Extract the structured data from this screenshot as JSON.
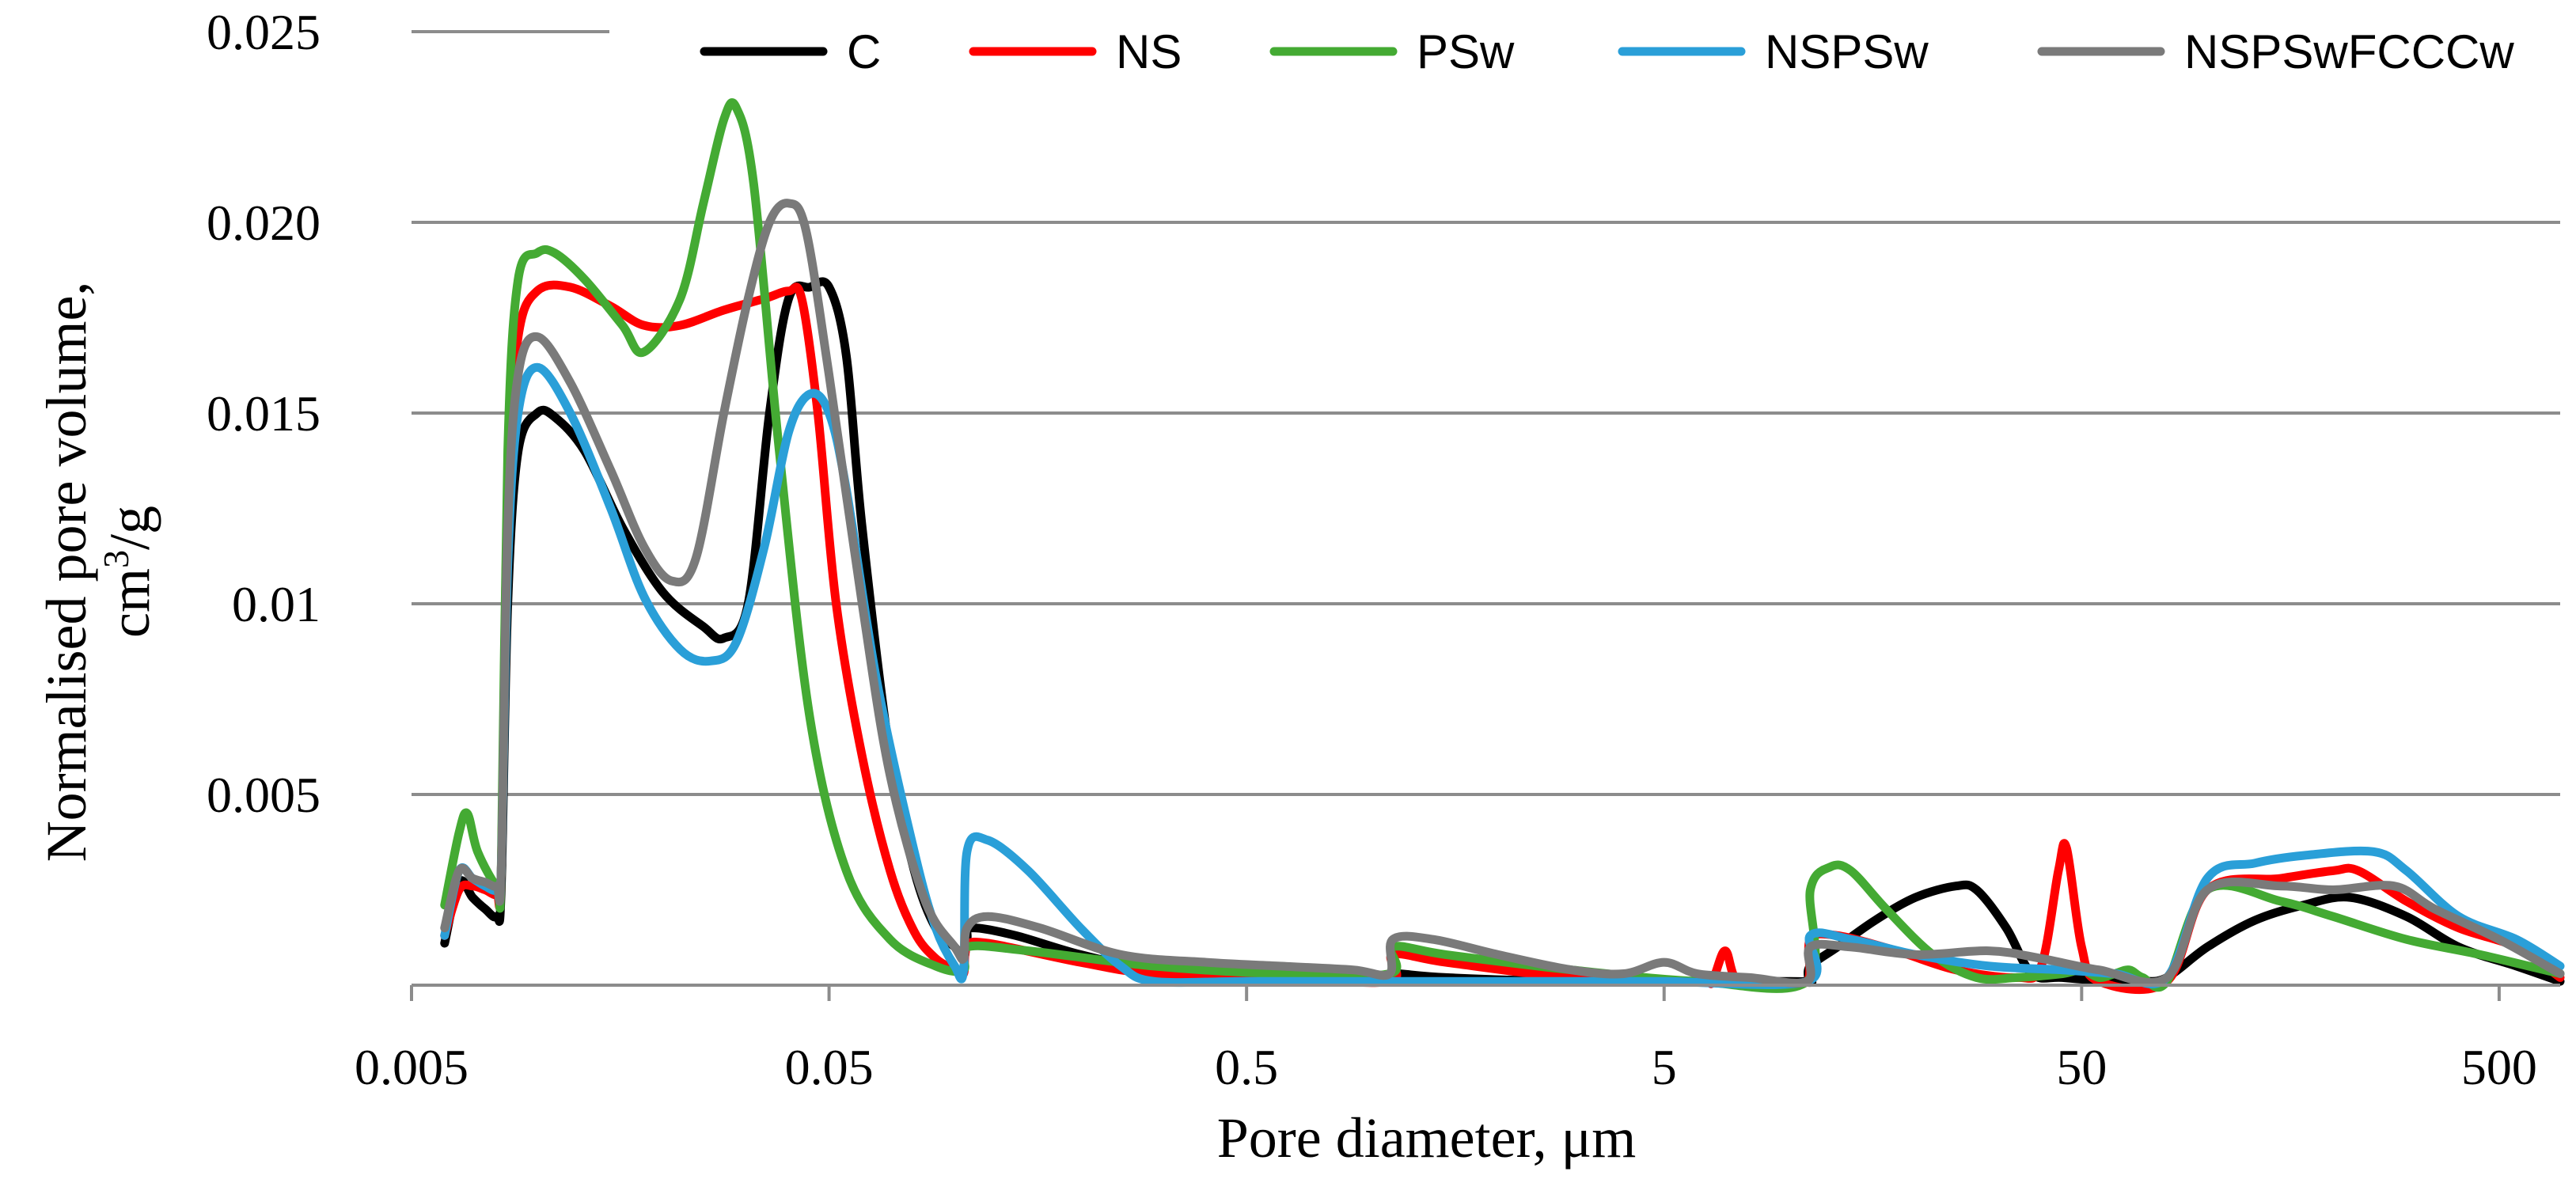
{
  "chart_data": {
    "type": "line",
    "xlabel": "Pore diameter, μm",
    "ylabel_line1": "Normalised pore volume,",
    "ylabel_line2_base": "cm",
    "ylabel_line2_sup": "3",
    "ylabel_line2_tail": "/g",
    "x_scale": "log",
    "xlim": [
      0.005,
      700
    ],
    "ylim": [
      0,
      0.025
    ],
    "grid": "horizontal",
    "legend_position": "top",
    "x_ticks": [
      {
        "value": 0.005,
        "label": "0.005"
      },
      {
        "value": 0.05,
        "label": "0.05"
      },
      {
        "value": 0.5,
        "label": "0.5"
      },
      {
        "value": 5,
        "label": "5"
      },
      {
        "value": 50,
        "label": "50"
      },
      {
        "value": 500,
        "label": "500"
      }
    ],
    "y_ticks": [
      {
        "value": 0.005,
        "label": "0.005"
      },
      {
        "value": 0.01,
        "label": "0.01"
      },
      {
        "value": 0.015,
        "label": "0.015"
      },
      {
        "value": 0.02,
        "label": "0.020"
      },
      {
        "value": 0.025,
        "label": "0.025"
      }
    ],
    "series": [
      {
        "name": "C",
        "color": "#000000",
        "points": [
          [
            0.006,
            0.0011
          ],
          [
            0.0065,
            0.0027
          ],
          [
            0.007,
            0.0023
          ],
          [
            0.0075,
            0.002
          ],
          [
            0.008,
            0.0018
          ],
          [
            0.0082,
            0.0025
          ],
          [
            0.0085,
            0.01
          ],
          [
            0.009,
            0.014
          ],
          [
            0.01,
            0.015
          ],
          [
            0.011,
            0.0149
          ],
          [
            0.013,
            0.014
          ],
          [
            0.016,
            0.012
          ],
          [
            0.02,
            0.0103
          ],
          [
            0.025,
            0.0094
          ],
          [
            0.028,
            0.0091
          ],
          [
            0.032,
            0.01
          ],
          [
            0.036,
            0.015
          ],
          [
            0.04,
            0.018
          ],
          [
            0.045,
            0.0183
          ],
          [
            0.05,
            0.0183
          ],
          [
            0.055,
            0.0165
          ],
          [
            0.06,
            0.012
          ],
          [
            0.07,
            0.006
          ],
          [
            0.08,
            0.003
          ],
          [
            0.09,
            0.0015
          ],
          [
            0.1,
            0.001
          ],
          [
            0.105,
            0.0007
          ],
          [
            0.107,
            0.0012
          ],
          [
            0.11,
            0.0015
          ],
          [
            0.14,
            0.0013
          ],
          [
            0.2,
            0.0008
          ],
          [
            0.3,
            0.0004
          ],
          [
            0.5,
            0.0002
          ],
          [
            1.0,
            0.0002
          ],
          [
            1.1,
            0.0001
          ],
          [
            1.12,
            0.0003
          ],
          [
            1.5,
            0.0002
          ],
          [
            3.0,
            0.0001
          ],
          [
            10.0,
            0.0001
          ],
          [
            11.0,
            0.0001
          ],
          [
            11.2,
            0.0005
          ],
          [
            13.0,
            0.001
          ],
          [
            16.0,
            0.0017
          ],
          [
            20.0,
            0.0023
          ],
          [
            25.0,
            0.0026
          ],
          [
            28.0,
            0.0025
          ],
          [
            33.0,
            0.0015
          ],
          [
            38.0,
            0.0003
          ],
          [
            45.0,
            0.0002
          ],
          [
            60.0,
            0.0001
          ],
          [
            70.0,
            0.0001
          ],
          [
            80.0,
            0.0002
          ],
          [
            100.0,
            0.001
          ],
          [
            130.0,
            0.0017
          ],
          [
            170.0,
            0.0021
          ],
          [
            220.0,
            0.0023
          ],
          [
            300.0,
            0.0018
          ],
          [
            400.0,
            0.001
          ],
          [
            550.0,
            0.0005
          ],
          [
            700.0,
            0.0001
          ]
        ]
      },
      {
        "name": "NS",
        "color": "#ff0000",
        "points": [
          [
            0.006,
            0.0013
          ],
          [
            0.0065,
            0.0025
          ],
          [
            0.007,
            0.0026
          ],
          [
            0.0075,
            0.0025
          ],
          [
            0.008,
            0.0024
          ],
          [
            0.0082,
            0.003
          ],
          [
            0.0085,
            0.013
          ],
          [
            0.009,
            0.017
          ],
          [
            0.01,
            0.0182
          ],
          [
            0.012,
            0.0183
          ],
          [
            0.015,
            0.0178
          ],
          [
            0.018,
            0.0173
          ],
          [
            0.022,
            0.0173
          ],
          [
            0.028,
            0.0177
          ],
          [
            0.035,
            0.018
          ],
          [
            0.04,
            0.0182
          ],
          [
            0.043,
            0.018
          ],
          [
            0.047,
            0.015
          ],
          [
            0.052,
            0.01
          ],
          [
            0.06,
            0.006
          ],
          [
            0.07,
            0.003
          ],
          [
            0.08,
            0.0014
          ],
          [
            0.09,
            0.0007
          ],
          [
            0.1,
            0.0004
          ],
          [
            0.105,
            0.0003
          ],
          [
            0.107,
            0.001
          ],
          [
            0.12,
            0.0011
          ],
          [
            0.2,
            0.0006
          ],
          [
            0.3,
            0.0003
          ],
          [
            0.6,
            0.0002
          ],
          [
            1.1,
            0.0001
          ],
          [
            1.12,
            0.0008
          ],
          [
            1.5,
            0.0006
          ],
          [
            3.0,
            0.0002
          ],
          [
            6.0,
            0.0001
          ],
          [
            6.5,
            0.0001
          ],
          [
            7.0,
            0.0009
          ],
          [
            7.5,
            0.0001
          ],
          [
            9.0,
            0.0001
          ],
          [
            11.0,
            0.0001
          ],
          [
            11.2,
            0.0012
          ],
          [
            13.0,
            0.0013
          ],
          [
            18.0,
            0.0009
          ],
          [
            25.0,
            0.0004
          ],
          [
            35.0,
            0.0002
          ],
          [
            40.0,
            0.0005
          ],
          [
            44.0,
            0.003
          ],
          [
            46.0,
            0.0036
          ],
          [
            50.0,
            0.001
          ],
          [
            55.0,
            0.0001
          ],
          [
            80.0,
            0.0001
          ],
          [
            100.0,
            0.0025
          ],
          [
            150.0,
            0.0028
          ],
          [
            200.0,
            0.003
          ],
          [
            230.0,
            0.003
          ],
          [
            300.0,
            0.0022
          ],
          [
            400.0,
            0.0015
          ],
          [
            550.0,
            0.001
          ],
          [
            700.0,
            0.0002
          ]
        ]
      },
      {
        "name": "PSw",
        "color": "#44aa33",
        "points": [
          [
            0.006,
            0.0021
          ],
          [
            0.0065,
            0.004
          ],
          [
            0.0068,
            0.0045
          ],
          [
            0.0072,
            0.0035
          ],
          [
            0.008,
            0.0026
          ],
          [
            0.0082,
            0.003
          ],
          [
            0.0085,
            0.014
          ],
          [
            0.009,
            0.0185
          ],
          [
            0.01,
            0.0192
          ],
          [
            0.011,
            0.0192
          ],
          [
            0.013,
            0.0185
          ],
          [
            0.016,
            0.0173
          ],
          [
            0.018,
            0.0166
          ],
          [
            0.022,
            0.018
          ],
          [
            0.025,
            0.0205
          ],
          [
            0.028,
            0.0227
          ],
          [
            0.03,
            0.023
          ],
          [
            0.033,
            0.021
          ],
          [
            0.038,
            0.014
          ],
          [
            0.045,
            0.007
          ],
          [
            0.055,
            0.003
          ],
          [
            0.07,
            0.0012
          ],
          [
            0.09,
            0.0005
          ],
          [
            0.105,
            0.0004
          ],
          [
            0.107,
            0.001
          ],
          [
            0.15,
            0.0009
          ],
          [
            0.3,
            0.0005
          ],
          [
            0.6,
            0.0003
          ],
          [
            1.1,
            0.0003
          ],
          [
            1.12,
            0.001
          ],
          [
            1.5,
            0.0008
          ],
          [
            3.0,
            0.0004
          ],
          [
            6.0,
            0.0001
          ],
          [
            11.0,
            0.0001
          ],
          [
            11.2,
            0.0025
          ],
          [
            12.5,
            0.0031
          ],
          [
            14.0,
            0.003
          ],
          [
            17.0,
            0.002
          ],
          [
            22.0,
            0.0008
          ],
          [
            28.0,
            0.0002
          ],
          [
            35.0,
            0.0002
          ],
          [
            45.0,
            0.0003
          ],
          [
            50.0,
            0.0004
          ],
          [
            55.0,
            0.0002
          ],
          [
            60.0,
            0.0003
          ],
          [
            65.0,
            0.0004
          ],
          [
            70.0,
            0.0002
          ],
          [
            80.0,
            0.0001
          ],
          [
            100.0,
            0.0025
          ],
          [
            150.0,
            0.0022
          ],
          [
            200.0,
            0.0018
          ],
          [
            300.0,
            0.0012
          ],
          [
            450.0,
            0.0008
          ],
          [
            700.0,
            0.0003
          ]
        ]
      },
      {
        "name": "NSPSw",
        "color": "#2a9fd8",
        "points": [
          [
            0.006,
            0.0013
          ],
          [
            0.0065,
            0.003
          ],
          [
            0.007,
            0.0028
          ],
          [
            0.0075,
            0.0026
          ],
          [
            0.008,
            0.0025
          ],
          [
            0.0082,
            0.003
          ],
          [
            0.0085,
            0.011
          ],
          [
            0.009,
            0.015
          ],
          [
            0.01,
            0.0162
          ],
          [
            0.012,
            0.015
          ],
          [
            0.015,
            0.0125
          ],
          [
            0.018,
            0.0102
          ],
          [
            0.022,
            0.0088
          ],
          [
            0.026,
            0.0085
          ],
          [
            0.03,
            0.009
          ],
          [
            0.035,
            0.0115
          ],
          [
            0.04,
            0.0145
          ],
          [
            0.045,
            0.0155
          ],
          [
            0.05,
            0.015
          ],
          [
            0.055,
            0.013
          ],
          [
            0.065,
            0.008
          ],
          [
            0.08,
            0.0035
          ],
          [
            0.09,
            0.0015
          ],
          [
            0.1,
            0.0005
          ],
          [
            0.105,
            0.0004
          ],
          [
            0.107,
            0.0035
          ],
          [
            0.12,
            0.0038
          ],
          [
            0.15,
            0.003
          ],
          [
            0.2,
            0.0015
          ],
          [
            0.25,
            0.0005
          ],
          [
            0.3,
            0.0001
          ],
          [
            0.5,
            0.0001
          ],
          [
            1.0,
            0.0001
          ],
          [
            3.0,
            0.0001
          ],
          [
            5.0,
            0.0001
          ],
          [
            11.0,
            0.0001
          ],
          [
            11.2,
            0.0013
          ],
          [
            14.0,
            0.0012
          ],
          [
            20.0,
            0.0008
          ],
          [
            30.0,
            0.0005
          ],
          [
            45.0,
            0.0004
          ],
          [
            60.0,
            0.0003
          ],
          [
            80.0,
            0.0002
          ],
          [
            100.0,
            0.0028
          ],
          [
            130.0,
            0.0032
          ],
          [
            170.0,
            0.0034
          ],
          [
            250.0,
            0.0035
          ],
          [
            300.0,
            0.003
          ],
          [
            400.0,
            0.0018
          ],
          [
            550.0,
            0.0012
          ],
          [
            700.0,
            0.0005
          ]
        ]
      },
      {
        "name": "NSPSwFCCCw",
        "color": "#7a7a7a",
        "points": [
          [
            0.006,
            0.0015
          ],
          [
            0.0065,
            0.003
          ],
          [
            0.007,
            0.0028
          ],
          [
            0.0075,
            0.0027
          ],
          [
            0.008,
            0.0026
          ],
          [
            0.0082,
            0.003
          ],
          [
            0.0085,
            0.012
          ],
          [
            0.009,
            0.016
          ],
          [
            0.01,
            0.017
          ],
          [
            0.012,
            0.0158
          ],
          [
            0.015,
            0.0135
          ],
          [
            0.018,
            0.0115
          ],
          [
            0.021,
            0.0106
          ],
          [
            0.024,
            0.0112
          ],
          [
            0.028,
            0.015
          ],
          [
            0.032,
            0.018
          ],
          [
            0.036,
            0.02
          ],
          [
            0.04,
            0.0205
          ],
          [
            0.044,
            0.0198
          ],
          [
            0.05,
            0.016
          ],
          [
            0.06,
            0.01
          ],
          [
            0.07,
            0.0055
          ],
          [
            0.085,
            0.0022
          ],
          [
            0.1,
            0.001
          ],
          [
            0.105,
            0.0007
          ],
          [
            0.107,
            0.0015
          ],
          [
            0.12,
            0.0018
          ],
          [
            0.16,
            0.0015
          ],
          [
            0.25,
            0.0008
          ],
          [
            0.4,
            0.0006
          ],
          [
            0.6,
            0.0005
          ],
          [
            0.9,
            0.0004
          ],
          [
            1.1,
            0.0003
          ],
          [
            1.12,
            0.0012
          ],
          [
            1.4,
            0.0012
          ],
          [
            2.0,
            0.0008
          ],
          [
            3.0,
            0.0004
          ],
          [
            4.0,
            0.0003
          ],
          [
            5.0,
            0.0006
          ],
          [
            6.0,
            0.0003
          ],
          [
            8.0,
            0.0002
          ],
          [
            11.0,
            0.0001
          ],
          [
            11.2,
            0.001
          ],
          [
            14.0,
            0.001
          ],
          [
            20.0,
            0.0008
          ],
          [
            30.0,
            0.0009
          ],
          [
            40.0,
            0.0007
          ],
          [
            55.0,
            0.0004
          ],
          [
            80.0,
            0.0002
          ],
          [
            100.0,
            0.0025
          ],
          [
            150.0,
            0.0026
          ],
          [
            200.0,
            0.0025
          ],
          [
            280.0,
            0.0026
          ],
          [
            350.0,
            0.002
          ],
          [
            500.0,
            0.0012
          ],
          [
            700.0,
            0.0003
          ]
        ]
      }
    ]
  }
}
